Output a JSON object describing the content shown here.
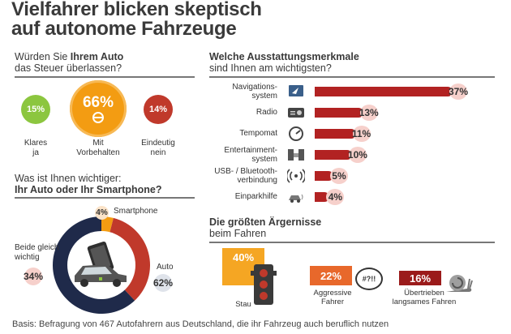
{
  "title": {
    "line1": "Vielfahrer blicken skeptisch",
    "line2": "auf autonome Fahrzeuge"
  },
  "q1": {
    "pre": "Würden Sie ",
    "bold": "Ihrem Auto",
    "line2": "das Steuer überlassen?"
  },
  "q1_answers": [
    {
      "pct": "15%",
      "label_l1": "Klares",
      "label_l2": "ja",
      "color": "#8cc63f"
    },
    {
      "pct": "66%",
      "label_l1": "Mit",
      "label_l2": "Vorbehalten",
      "color": "#f39c12"
    },
    {
      "pct": "14%",
      "label_l1": "Eindeutig",
      "label_l2": "nein",
      "color": "#c0392b"
    }
  ],
  "q2": {
    "line1": "Was ist Ihnen wichtiger:",
    "line2": "Ihr Auto oder Ihr Smartphone?"
  },
  "q2_answers": {
    "smartphone": {
      "pct": "4%",
      "label": "Smartphone"
    },
    "both": {
      "pct": "34%",
      "label_l1": "Beide gleich",
      "label_l2": "wichtig"
    },
    "auto": {
      "pct": "62%",
      "label": "Auto"
    }
  },
  "q3": {
    "line1": "Welche Ausstattungsmerkmale",
    "line2": "sind Ihnen am wichtigsten?"
  },
  "q4": {
    "line1": "Die größten Ärgernisse",
    "line2": "beim Fahren"
  },
  "q4_answers": [
    {
      "pct": "40%",
      "label_l1": "Stau",
      "label_l2": "",
      "symbol": ""
    },
    {
      "pct": "22%",
      "label_l1": "Aggressive",
      "label_l2": "Fahrer",
      "symbol": "#?!!"
    },
    {
      "pct": "16%",
      "label_l1": "Übertrieben",
      "label_l2": "langsames Fahren",
      "symbol": ""
    }
  ],
  "footer": "Basis: Befragung von 467 Autofahrern aus Deutschland, die ihr Fahrzeug auch beruflich nutzen",
  "chart_data": [
    {
      "type": "pie",
      "title": "Würden Sie Ihrem Auto das Steuer überlassen?",
      "categories": [
        "Klares ja",
        "Mit Vorbehalten",
        "Eindeutig nein"
      ],
      "values": [
        15,
        66,
        14
      ],
      "unit": "%"
    },
    {
      "type": "pie",
      "title": "Was ist Ihnen wichtiger: Ihr Auto oder Ihr Smartphone?",
      "categories": [
        "Smartphone",
        "Beide gleich wichtig",
        "Auto"
      ],
      "values": [
        4,
        34,
        62
      ],
      "colors": [
        "#f39c12",
        "#c0392b",
        "#1f2a4a"
      ],
      "unit": "%"
    },
    {
      "type": "bar",
      "orientation": "horizontal",
      "title": "Welche Ausstattungsmerkmale sind Ihnen am wichtigsten?",
      "categories": [
        "Navigations-system",
        "Radio",
        "Tempomat",
        "Entertainment-system",
        "USB- / Bluetooth-verbindung",
        "Einparkhilfe"
      ],
      "labels": [
        [
          "Navigations-",
          "system"
        ],
        [
          "Radio"
        ],
        [
          "Tempomat"
        ],
        [
          "Entertainment-",
          "system"
        ],
        [
          "USB- / Bluetooth-",
          "verbindung"
        ],
        [
          "Einparkhilfe"
        ]
      ],
      "icons": [
        "navigation-icon",
        "radio-icon",
        "speedometer-icon",
        "speaker-icon",
        "wireless-icon",
        "parking-sensor-icon"
      ],
      "values": [
        37,
        13,
        11,
        10,
        5,
        4
      ],
      "value_labels": [
        "37%",
        "13%",
        "11%",
        "10%",
        "5%",
        "4%"
      ],
      "xlim": [
        0,
        37
      ],
      "color": "#b22222",
      "unit": "%"
    },
    {
      "type": "bar",
      "title": "Die größten Ärgernisse beim Fahren",
      "categories": [
        "Stau",
        "Aggressive Fahrer",
        "Übertrieben langsames Fahren"
      ],
      "values": [
        40,
        22,
        16
      ],
      "unit": "%"
    }
  ]
}
